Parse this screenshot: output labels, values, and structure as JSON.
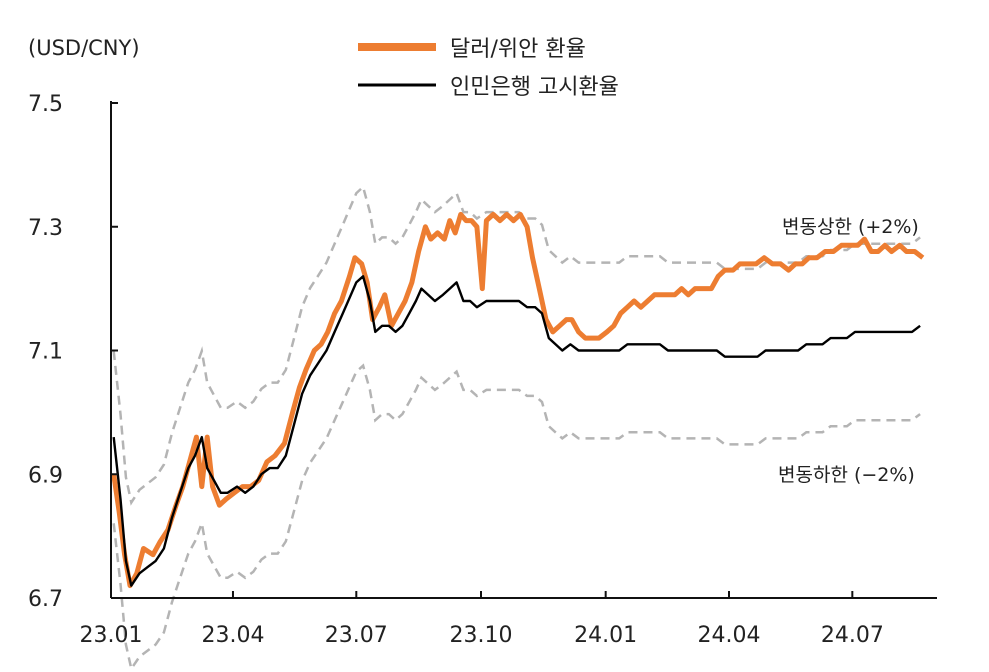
{
  "chart_data": {
    "type": "line",
    "unit_label": "(USD/CNY)",
    "y_ticks": [
      "7.5",
      "7.3",
      "7.1",
      "6.9",
      "6.7"
    ],
    "x_ticks": [
      "23.01",
      "23.04",
      "23.07",
      "23.10",
      "24.01",
      "24.04",
      "24.07"
    ],
    "ylim": [
      6.7,
      7.5
    ],
    "xlim": [
      "2023-01-01",
      "2024-08-31"
    ],
    "series": [
      {
        "name": "달러/위안 환율",
        "color": "#ed7d31",
        "points": [
          [
            "2023-01-03",
            6.9
          ],
          [
            "2023-01-07",
            6.84
          ],
          [
            "2023-01-11",
            6.77
          ],
          [
            "2023-01-15",
            6.72
          ],
          [
            "2023-01-20",
            6.74
          ],
          [
            "2023-01-25",
            6.78
          ],
          [
            "2023-02-01",
            6.77
          ],
          [
            "2023-02-06",
            6.79
          ],
          [
            "2023-02-12",
            6.81
          ],
          [
            "2023-02-18",
            6.85
          ],
          [
            "2023-02-23",
            6.88
          ],
          [
            "2023-02-28",
            6.92
          ],
          [
            "2023-03-05",
            6.96
          ],
          [
            "2023-03-09",
            6.88
          ],
          [
            "2023-03-13",
            6.96
          ],
          [
            "2023-03-17",
            6.88
          ],
          [
            "2023-03-22",
            6.85
          ],
          [
            "2023-03-27",
            6.86
          ],
          [
            "2023-04-02",
            6.87
          ],
          [
            "2023-04-08",
            6.88
          ],
          [
            "2023-04-14",
            6.88
          ],
          [
            "2023-04-20",
            6.89
          ],
          [
            "2023-04-26",
            6.92
          ],
          [
            "2023-05-02",
            6.93
          ],
          [
            "2023-05-09",
            6.95
          ],
          [
            "2023-05-15",
            7.0
          ],
          [
            "2023-05-20",
            7.04
          ],
          [
            "2023-05-25",
            7.07
          ],
          [
            "2023-05-31",
            7.1
          ],
          [
            "2023-06-05",
            7.11
          ],
          [
            "2023-06-10",
            7.13
          ],
          [
            "2023-06-15",
            7.16
          ],
          [
            "2023-06-20",
            7.18
          ],
          [
            "2023-06-26",
            7.22
          ],
          [
            "2023-06-30",
            7.25
          ],
          [
            "2023-07-05",
            7.24
          ],
          [
            "2023-07-09",
            7.21
          ],
          [
            "2023-07-13",
            7.15
          ],
          [
            "2023-07-18",
            7.17
          ],
          [
            "2023-07-22",
            7.19
          ],
          [
            "2023-07-27",
            7.14
          ],
          [
            "2023-08-01",
            7.16
          ],
          [
            "2023-08-06",
            7.18
          ],
          [
            "2023-08-11",
            7.21
          ],
          [
            "2023-08-16",
            7.26
          ],
          [
            "2023-08-21",
            7.3
          ],
          [
            "2023-08-25",
            7.28
          ],
          [
            "2023-08-30",
            7.29
          ],
          [
            "2023-09-04",
            7.28
          ],
          [
            "2023-09-08",
            7.31
          ],
          [
            "2023-09-12",
            7.29
          ],
          [
            "2023-09-16",
            7.32
          ],
          [
            "2023-09-20",
            7.31
          ],
          [
            "2023-09-24",
            7.31
          ],
          [
            "2023-09-28",
            7.3
          ],
          [
            "2023-10-02",
            7.2
          ],
          [
            "2023-10-05",
            7.31
          ],
          [
            "2023-10-10",
            7.32
          ],
          [
            "2023-10-15",
            7.31
          ],
          [
            "2023-10-20",
            7.32
          ],
          [
            "2023-10-25",
            7.31
          ],
          [
            "2023-10-30",
            7.32
          ],
          [
            "2023-11-04",
            7.3
          ],
          [
            "2023-11-08",
            7.25
          ],
          [
            "2023-11-13",
            7.2
          ],
          [
            "2023-11-18",
            7.15
          ],
          [
            "2023-11-23",
            7.13
          ],
          [
            "2023-11-28",
            7.14
          ],
          [
            "2023-12-03",
            7.15
          ],
          [
            "2023-12-07",
            7.15
          ],
          [
            "2023-12-12",
            7.13
          ],
          [
            "2023-12-17",
            7.12
          ],
          [
            "2023-12-22",
            7.12
          ],
          [
            "2023-12-27",
            7.12
          ],
          [
            "2024-01-02",
            7.13
          ],
          [
            "2024-01-07",
            7.14
          ],
          [
            "2024-01-12",
            7.16
          ],
          [
            "2024-01-17",
            7.17
          ],
          [
            "2024-01-22",
            7.18
          ],
          [
            "2024-01-27",
            7.17
          ],
          [
            "2024-02-01",
            7.18
          ],
          [
            "2024-02-06",
            7.19
          ],
          [
            "2024-02-11",
            7.19
          ],
          [
            "2024-02-16",
            7.19
          ],
          [
            "2024-02-21",
            7.19
          ],
          [
            "2024-02-26",
            7.2
          ],
          [
            "2024-03-02",
            7.19
          ],
          [
            "2024-03-07",
            7.2
          ],
          [
            "2024-03-13",
            7.2
          ],
          [
            "2024-03-19",
            7.2
          ],
          [
            "2024-03-24",
            7.22
          ],
          [
            "2024-03-29",
            7.23
          ],
          [
            "2024-04-04",
            7.23
          ],
          [
            "2024-04-09",
            7.24
          ],
          [
            "2024-04-15",
            7.24
          ],
          [
            "2024-04-21",
            7.24
          ],
          [
            "2024-04-27",
            7.25
          ],
          [
            "2024-05-03",
            7.24
          ],
          [
            "2024-05-09",
            7.24
          ],
          [
            "2024-05-15",
            7.23
          ],
          [
            "2024-05-20",
            7.24
          ],
          [
            "2024-05-25",
            7.24
          ],
          [
            "2024-05-30",
            7.25
          ],
          [
            "2024-06-05",
            7.25
          ],
          [
            "2024-06-11",
            7.26
          ],
          [
            "2024-06-17",
            7.26
          ],
          [
            "2024-06-23",
            7.27
          ],
          [
            "2024-06-29",
            7.27
          ],
          [
            "2024-07-05",
            7.27
          ],
          [
            "2024-07-10",
            7.28
          ],
          [
            "2024-07-15",
            7.26
          ],
          [
            "2024-07-20",
            7.26
          ],
          [
            "2024-07-25",
            7.27
          ],
          [
            "2024-07-30",
            7.26
          ],
          [
            "2024-08-05",
            7.27
          ],
          [
            "2024-08-10",
            7.26
          ],
          [
            "2024-08-16",
            7.26
          ],
          [
            "2024-08-22",
            7.25
          ]
        ]
      },
      {
        "name": "인민은행 고시환율",
        "color": "#000000",
        "points": [
          [
            "2023-01-03",
            6.96
          ],
          [
            "2023-01-08",
            6.86
          ],
          [
            "2023-01-12",
            6.76
          ],
          [
            "2023-01-16",
            6.72
          ],
          [
            "2023-01-22",
            6.74
          ],
          [
            "2023-01-28",
            6.75
          ],
          [
            "2023-02-03",
            6.76
          ],
          [
            "2023-02-09",
            6.78
          ],
          [
            "2023-02-15",
            6.83
          ],
          [
            "2023-02-21",
            6.87
          ],
          [
            "2023-02-27",
            6.91
          ],
          [
            "2023-03-04",
            6.93
          ],
          [
            "2023-03-09",
            6.96
          ],
          [
            "2023-03-13",
            6.91
          ],
          [
            "2023-03-18",
            6.89
          ],
          [
            "2023-03-23",
            6.87
          ],
          [
            "2023-03-28",
            6.87
          ],
          [
            "2023-04-04",
            6.88
          ],
          [
            "2023-04-10",
            6.87
          ],
          [
            "2023-04-16",
            6.88
          ],
          [
            "2023-04-22",
            6.9
          ],
          [
            "2023-04-28",
            6.91
          ],
          [
            "2023-05-04",
            6.91
          ],
          [
            "2023-05-10",
            6.93
          ],
          [
            "2023-05-16",
            6.98
          ],
          [
            "2023-05-22",
            7.03
          ],
          [
            "2023-05-28",
            7.06
          ],
          [
            "2023-06-03",
            7.08
          ],
          [
            "2023-06-09",
            7.1
          ],
          [
            "2023-06-15",
            7.13
          ],
          [
            "2023-06-21",
            7.16
          ],
          [
            "2023-06-27",
            7.19
          ],
          [
            "2023-07-01",
            7.21
          ],
          [
            "2023-07-06",
            7.22
          ],
          [
            "2023-07-11",
            7.18
          ],
          [
            "2023-07-15",
            7.13
          ],
          [
            "2023-07-20",
            7.14
          ],
          [
            "2023-07-25",
            7.14
          ],
          [
            "2023-07-30",
            7.13
          ],
          [
            "2023-08-04",
            7.14
          ],
          [
            "2023-08-09",
            7.16
          ],
          [
            "2023-08-14",
            7.18
          ],
          [
            "2023-08-18",
            7.2
          ],
          [
            "2023-08-23",
            7.19
          ],
          [
            "2023-08-28",
            7.18
          ],
          [
            "2023-09-03",
            7.19
          ],
          [
            "2023-09-08",
            7.2
          ],
          [
            "2023-09-13",
            7.21
          ],
          [
            "2023-09-18",
            7.18
          ],
          [
            "2023-09-23",
            7.18
          ],
          [
            "2023-09-28",
            7.17
          ],
          [
            "2023-10-05",
            7.18
          ],
          [
            "2023-10-11",
            7.18
          ],
          [
            "2023-10-17",
            7.18
          ],
          [
            "2023-10-23",
            7.18
          ],
          [
            "2023-10-29",
            7.18
          ],
          [
            "2023-11-04",
            7.17
          ],
          [
            "2023-11-10",
            7.17
          ],
          [
            "2023-11-15",
            7.16
          ],
          [
            "2023-11-20",
            7.12
          ],
          [
            "2023-11-25",
            7.11
          ],
          [
            "2023-11-30",
            7.1
          ],
          [
            "2023-12-06",
            7.11
          ],
          [
            "2023-12-12",
            7.1
          ],
          [
            "2023-12-18",
            7.1
          ],
          [
            "2023-12-24",
            7.1
          ],
          [
            "2023-12-30",
            7.1
          ],
          [
            "2024-01-05",
            7.1
          ],
          [
            "2024-01-11",
            7.1
          ],
          [
            "2024-01-17",
            7.11
          ],
          [
            "2024-01-23",
            7.11
          ],
          [
            "2024-01-29",
            7.11
          ],
          [
            "2024-02-04",
            7.11
          ],
          [
            "2024-02-10",
            7.11
          ],
          [
            "2024-02-16",
            7.1
          ],
          [
            "2024-02-22",
            7.1
          ],
          [
            "2024-02-28",
            7.1
          ],
          [
            "2024-03-05",
            7.1
          ],
          [
            "2024-03-11",
            7.1
          ],
          [
            "2024-03-17",
            7.1
          ],
          [
            "2024-03-23",
            7.1
          ],
          [
            "2024-03-29",
            7.09
          ],
          [
            "2024-04-04",
            7.09
          ],
          [
            "2024-04-10",
            7.09
          ],
          [
            "2024-04-16",
            7.09
          ],
          [
            "2024-04-22",
            7.09
          ],
          [
            "2024-04-28",
            7.1
          ],
          [
            "2024-05-04",
            7.1
          ],
          [
            "2024-05-10",
            7.1
          ],
          [
            "2024-05-16",
            7.1
          ],
          [
            "2024-05-22",
            7.1
          ],
          [
            "2024-05-28",
            7.11
          ],
          [
            "2024-06-03",
            7.11
          ],
          [
            "2024-06-09",
            7.11
          ],
          [
            "2024-06-15",
            7.12
          ],
          [
            "2024-06-21",
            7.12
          ],
          [
            "2024-06-27",
            7.12
          ],
          [
            "2024-07-03",
            7.13
          ],
          [
            "2024-07-09",
            7.13
          ],
          [
            "2024-07-15",
            7.13
          ],
          [
            "2024-07-21",
            7.13
          ],
          [
            "2024-07-27",
            7.13
          ],
          [
            "2024-08-02",
            7.13
          ],
          [
            "2024-08-08",
            7.13
          ],
          [
            "2024-08-14",
            7.13
          ],
          [
            "2024-08-20",
            7.14
          ]
        ]
      }
    ],
    "bands": [
      {
        "label": "변동상한 (+2%)",
        "color": "#b4b4b4",
        "multiplier": 1.02,
        "of_series": "인민은행 고시환율"
      },
      {
        "label": "변동하한 (−2%)",
        "color": "#b4b4b4",
        "multiplier": 0.98,
        "of_series": "인민은행 고시환율"
      }
    ],
    "grid": false,
    "legend_position": "top-center"
  }
}
